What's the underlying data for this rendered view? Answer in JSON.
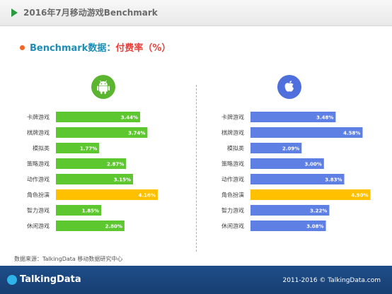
{
  "header": {
    "title": "2016年7月移动游戏Benchmark"
  },
  "subtitle": {
    "part1": "Benchmark数据：",
    "part2": "付费率（%）"
  },
  "colors": {
    "android": "#5cc72e",
    "ios": "#5e7fe3",
    "highlight": "#ffc000"
  },
  "icons": {
    "android": "android-icon",
    "ios": "apple-icon"
  },
  "chart_data": [
    {
      "type": "bar",
      "orientation": "horizontal",
      "platform_icon": "android-icon",
      "categories": [
        "卡牌游戏",
        "棋牌游戏",
        "模拟类",
        "策略游戏",
        "动作游戏",
        "角色扮演",
        "智力游戏",
        "休闲游戏"
      ],
      "values": [
        3.44,
        3.74,
        1.77,
        2.87,
        3.15,
        4.16,
        1.85,
        2.8
      ],
      "value_labels": [
        "3.44%",
        "3.74%",
        "1.77%",
        "2.87%",
        "3.15%",
        "4.16%",
        "1.85%",
        "2.80%"
      ],
      "highlight": "角色扮演",
      "unit": "%"
    },
    {
      "type": "bar",
      "orientation": "horizontal",
      "platform_icon": "apple-icon",
      "categories": [
        "卡牌游戏",
        "棋牌游戏",
        "模拟类",
        "策略游戏",
        "动作游戏",
        "角色扮演",
        "智力游戏",
        "休闲游戏"
      ],
      "values": [
        3.48,
        4.58,
        2.09,
        3.0,
        3.83,
        4.9,
        3.22,
        3.08
      ],
      "value_labels": [
        "3.48%",
        "4.58%",
        "2.09%",
        "3.00%",
        "3.83%",
        "4.90%",
        "3.22%",
        "3.08%"
      ],
      "highlight": "角色扮演",
      "unit": "%"
    }
  ],
  "source": "数据来源：TalkingData 移动数据研究中心",
  "footer": {
    "logo": "TalkingData",
    "copyright": "2011-2016 © TalkingData.com"
  }
}
